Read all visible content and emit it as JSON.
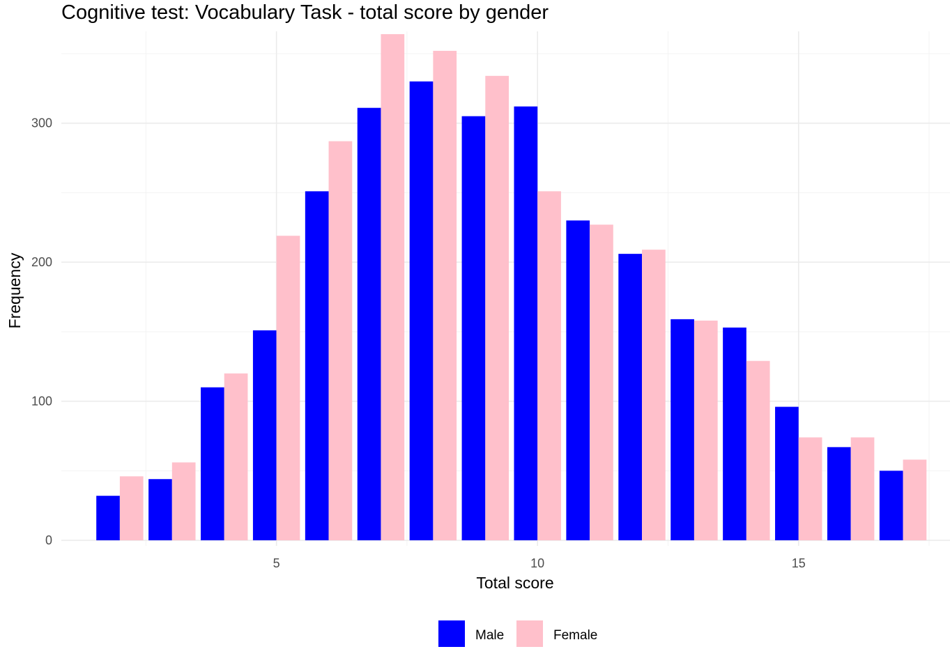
{
  "chart_data": {
    "type": "bar",
    "title": "Cognitive test: Vocabulary Task - total score by gender",
    "xlabel": "Total score",
    "ylabel": "Frequency",
    "x": [
      2,
      3,
      4,
      5,
      6,
      7,
      8,
      9,
      10,
      11,
      12,
      13,
      14,
      15,
      16,
      17
    ],
    "xlim": [
      0.88,
      17.9
    ],
    "ylim": [
      -4,
      366
    ],
    "x_ticks": [
      5,
      10,
      15
    ],
    "y_ticks": [
      0,
      100,
      200,
      300
    ],
    "grid": true,
    "legend_position": "bottom",
    "series": [
      {
        "name": "Male",
        "color": "#0000FF",
        "values": [
          32,
          44,
          110,
          151,
          251,
          311,
          330,
          305,
          312,
          230,
          206,
          159,
          153,
          96,
          67,
          50
        ]
      },
      {
        "name": "Female",
        "color": "#FFC0CB",
        "values": [
          46,
          56,
          120,
          219,
          287,
          364,
          352,
          334,
          251,
          227,
          209,
          158,
          129,
          74,
          74,
          58
        ]
      }
    ]
  }
}
